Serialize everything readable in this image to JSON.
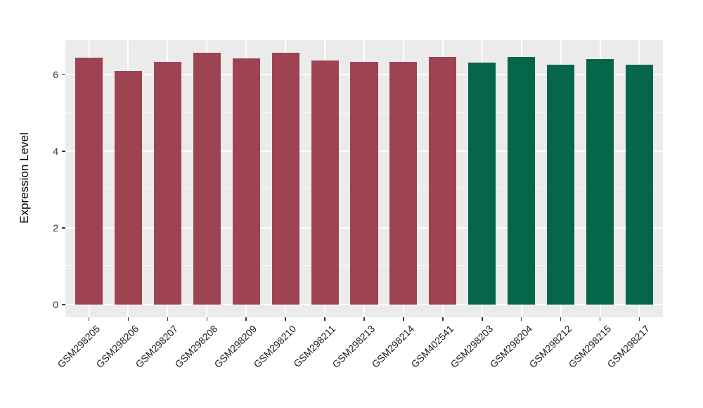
{
  "chart_data": {
    "type": "bar",
    "title": "",
    "xlabel": "",
    "ylabel": "Expression Level",
    "ylim": [
      0,
      6.9
    ],
    "yticks": [
      0,
      2,
      4,
      6
    ],
    "yticks_minor": [
      1,
      3,
      5
    ],
    "grid": true,
    "legend": false,
    "categories": [
      "GSM298205",
      "GSM298206",
      "GSM298207",
      "GSM298208",
      "GSM298209",
      "GSM298210",
      "GSM298211",
      "GSM298213",
      "GSM298214",
      "GSM402541",
      "GSM298203",
      "GSM298204",
      "GSM298212",
      "GSM298215",
      "GSM298217"
    ],
    "values": [
      6.43,
      6.08,
      6.32,
      6.56,
      6.41,
      6.57,
      6.37,
      6.33,
      6.32,
      6.45,
      6.3,
      6.45,
      6.26,
      6.39,
      6.25
    ],
    "bar_colors": [
      "#9E4351",
      "#9E4351",
      "#9E4351",
      "#9E4351",
      "#9E4351",
      "#9E4351",
      "#9E4351",
      "#9E4351",
      "#9E4351",
      "#9E4351",
      "#066649",
      "#066649",
      "#066649",
      "#066649",
      "#066649"
    ]
  },
  "colors": {
    "panel_background": "#EBEBEB",
    "grid_major": "#FFFFFF",
    "bar_red": "#9E4351",
    "bar_green": "#066649",
    "tick_text": "#333333"
  }
}
